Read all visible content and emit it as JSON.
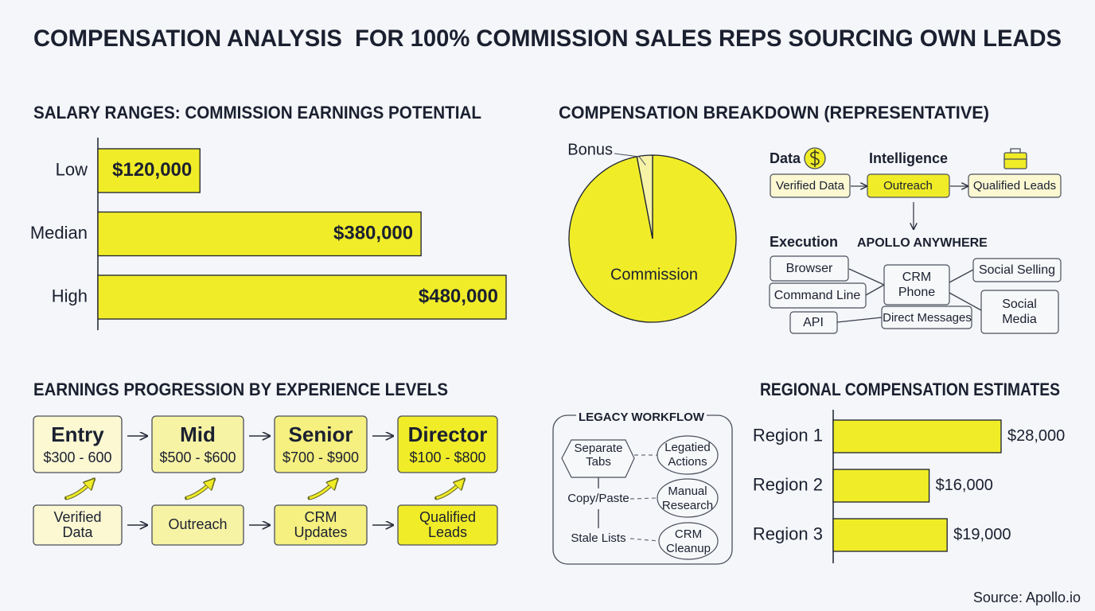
{
  "title": "COMPENSATION ANALYSIS  FOR 100% COMMISSION SALES REPS SOURCING OWN LEADS",
  "chart_data": [
    {
      "type": "bar",
      "orientation": "horizontal",
      "title": "SALARY RANGES: COMMISSION EARNINGS POTENTIAL",
      "categories": [
        "Low",
        "Median",
        "High"
      ],
      "values": [
        120000,
        380000,
        480000
      ],
      "value_labels": [
        "$120,000",
        "$380,000",
        "$480,000"
      ],
      "color": "#f0ec28",
      "value_label_position": "inside"
    },
    {
      "type": "pie",
      "title": "COMPENSATION BREAKDOWN (REPRESENTATIVE)",
      "categories": [
        "Commission",
        "Bonus"
      ],
      "values": [
        97,
        3
      ],
      "colors": [
        "#f0ec28",
        "#f6f2a6"
      ]
    },
    {
      "type": "bar",
      "orientation": "horizontal",
      "title": "REGIONAL COMPENSATION ESTIMATES",
      "categories": [
        "Region 1",
        "Region 2",
        "Region 3"
      ],
      "values": [
        28000,
        16000,
        19000
      ],
      "value_labels": [
        "$28,000",
        "$16,000",
        "$19,000"
      ],
      "color": "#f0ec28",
      "value_label_position": "outside"
    }
  ],
  "progression": {
    "title": "EARNINGS PROGRESSION BY EXPERIENCE LEVELS",
    "levels": [
      {
        "name": "Entry",
        "range": "$300 - 600"
      },
      {
        "name": "Mid",
        "range": "$500 - $600"
      },
      {
        "name": "Senior",
        "range": "$700 - $900"
      },
      {
        "name": "Director",
        "range": "$100 - $800"
      }
    ],
    "steps": [
      [
        "Verified",
        "Data"
      ],
      [
        "Outreach"
      ],
      [
        "CRM",
        "Updates"
      ],
      [
        "Qualified",
        "Leads"
      ]
    ]
  },
  "apollo": {
    "groups": [
      "Data",
      "Intelligence",
      "Execution",
      "APOLLO ANYWHERE"
    ],
    "flow": [
      "Verified Data",
      "Outreach",
      "Qualified Leads"
    ],
    "channels": [
      "Browser",
      "Command Line",
      "API"
    ],
    "hub": [
      "CRM",
      "Phone"
    ],
    "outputs": [
      "Social Selling",
      "Direct Messages"
    ],
    "social": [
      "Social",
      "Media"
    ]
  },
  "legacy": {
    "title": "LEGACY WORKFLOW",
    "left": [
      [
        "Separate",
        "Tabs"
      ],
      [
        "Copy/Paste"
      ],
      [
        "Stale Lists"
      ]
    ],
    "right": [
      [
        "Legatied",
        "Actions"
      ],
      [
        "Manual",
        "Research"
      ],
      [
        "CRM",
        "Cleanup"
      ]
    ]
  },
  "source": "Source: Apollo.io"
}
